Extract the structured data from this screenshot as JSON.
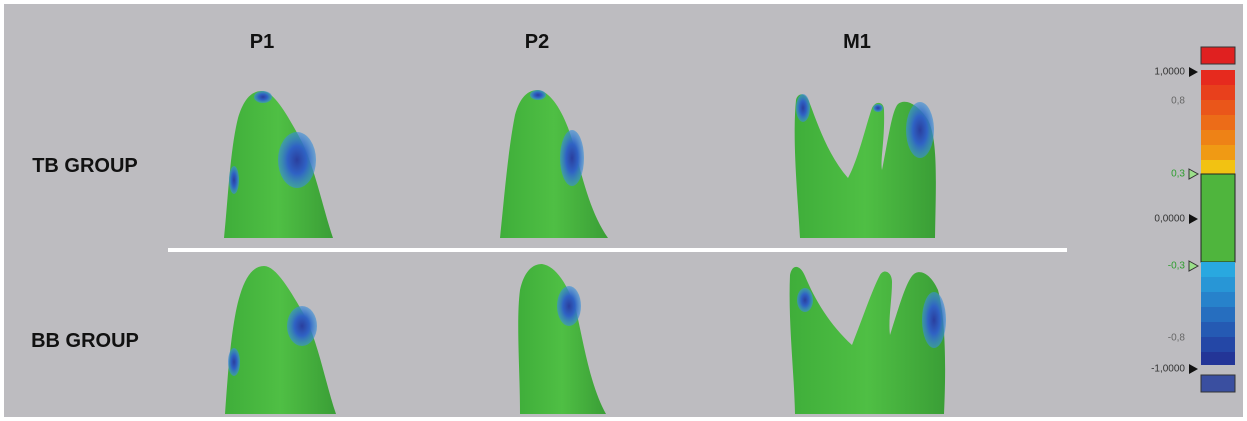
{
  "columns": [
    "P1",
    "P2",
    "M1"
  ],
  "rows": [
    "TB GROUP",
    "BB GROUP"
  ],
  "scale": {
    "labels": [
      "1,0000",
      "0,8",
      "0,3",
      "0,0000",
      "-0,3",
      "-0,8",
      "-1,0000"
    ]
  }
}
